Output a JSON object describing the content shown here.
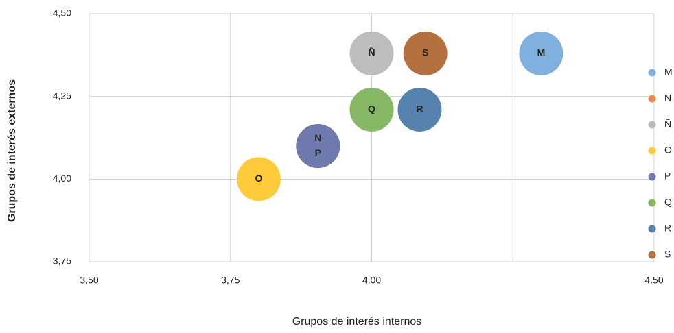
{
  "chart_data": {
    "type": "bubble",
    "xlabel": "Grupos de interés internos",
    "ylabel": "Grupos de interés externos",
    "xlim": [
      3.5,
      4.5
    ],
    "xticks": [
      {
        "value": 3.5,
        "label": "3,50"
      },
      {
        "value": 3.75,
        "label": "3,75"
      },
      {
        "value": 4.0,
        "label": "4,00"
      },
      {
        "value": 4.25,
        "label": null
      },
      {
        "value": 4.5,
        "label": "4.50"
      }
    ],
    "ylim": [
      3.75,
      4.5
    ],
    "yticks": [
      {
        "value": 3.75,
        "label": "3,75"
      },
      {
        "value": 4.0,
        "label": "4,00"
      },
      {
        "value": 4.25,
        "label": "4,25"
      },
      {
        "value": 4.5,
        "label": "4,50"
      }
    ],
    "grid": true,
    "legend": "right",
    "series": [
      {
        "name": "M",
        "color": "#7fb0de",
        "x": [
          4.3
        ],
        "y": [
          4.38
        ],
        "size": [
          1
        ]
      },
      {
        "name": "N",
        "color": "#ed8a4c",
        "x": [
          3.905
        ],
        "y": [
          4.1
        ],
        "size": [
          1
        ]
      },
      {
        "name": "Ñ",
        "color": "#bdbdbd",
        "x": [
          4.0
        ],
        "y": [
          4.38
        ],
        "size": [
          1
        ]
      },
      {
        "name": "O",
        "color": "#ffcb3a",
        "x": [
          3.8
        ],
        "y": [
          4.0
        ],
        "size": [
          1
        ]
      },
      {
        "name": "P",
        "color": "#6f7aae",
        "x": [
          3.905
        ],
        "y": [
          4.1
        ],
        "size": [
          1
        ]
      },
      {
        "name": "Q",
        "color": "#86b865",
        "x": [
          4.0
        ],
        "y": [
          4.21
        ],
        "size": [
          1
        ]
      },
      {
        "name": "R",
        "color": "#5683ae",
        "x": [
          4.085
        ],
        "y": [
          4.21
        ],
        "size": [
          1
        ]
      },
      {
        "name": "S",
        "color": "#b5703f",
        "x": [
          4.095
        ],
        "y": [
          4.38
        ],
        "size": [
          1
        ]
      }
    ]
  }
}
